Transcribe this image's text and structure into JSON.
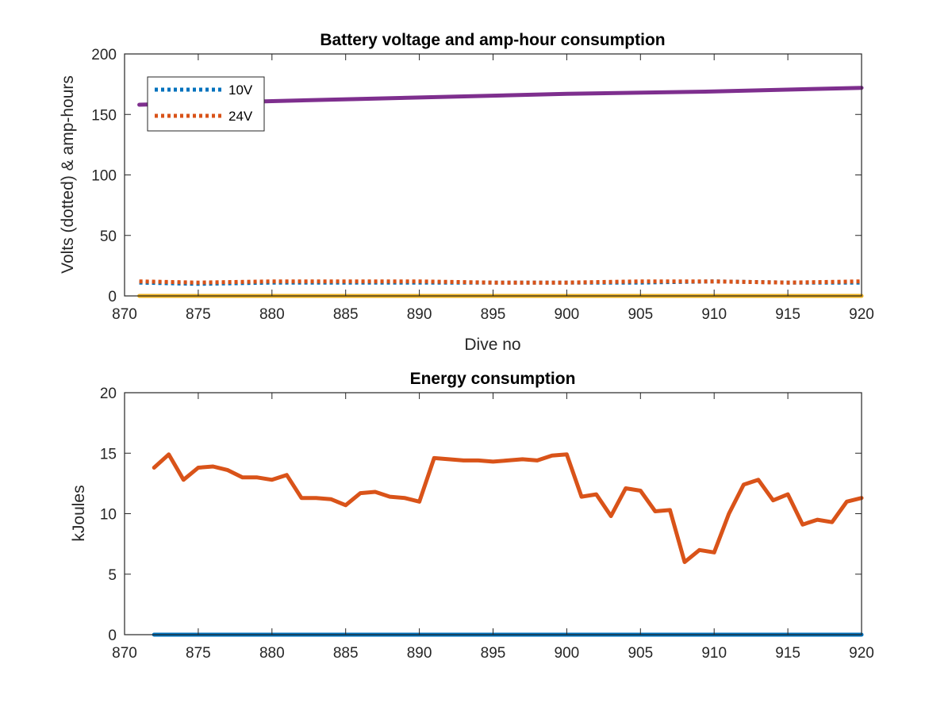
{
  "chart_data": [
    {
      "type": "line",
      "title": "Battery voltage and amp-hour consumption",
      "xlabel": "Dive no",
      "ylabel": "Volts (dotted) & amp-hours",
      "xlim": [
        870,
        920
      ],
      "ylim": [
        0,
        200
      ],
      "xticks": [
        870,
        875,
        880,
        885,
        890,
        895,
        900,
        905,
        910,
        915,
        920
      ],
      "yticks": [
        0,
        50,
        100,
        150,
        200
      ],
      "grid": false,
      "legend_position": "top-left",
      "series": [
        {
          "name": "10V",
          "style": "dotted",
          "color": "#0072BD",
          "x": [
            871,
            875,
            880,
            885,
            890,
            895,
            900,
            905,
            910,
            915,
            920
          ],
          "y": [
            11,
            10,
            11,
            11,
            11,
            11,
            11,
            11,
            12,
            11,
            11
          ]
        },
        {
          "name": "24V",
          "style": "dotted",
          "color": "#D95319",
          "x": [
            871,
            875,
            880,
            885,
            890,
            895,
            900,
            905,
            910,
            915,
            920
          ],
          "y": [
            12,
            11,
            12,
            12,
            12,
            11,
            11,
            12,
            12,
            11,
            12
          ]
        },
        {
          "style": "solid",
          "color": "#EDB120",
          "x": [
            871,
            920
          ],
          "y": [
            0,
            0
          ]
        },
        {
          "style": "solid",
          "color": "#7E2F8E",
          "x": [
            871,
            880,
            890,
            900,
            910,
            920
          ],
          "y": [
            158,
            161,
            164,
            167,
            169,
            172
          ]
        }
      ]
    },
    {
      "type": "line",
      "title": "Energy consumption",
      "xlabel": "",
      "ylabel": "kJoules",
      "xlim": [
        870,
        920
      ],
      "ylim": [
        0,
        20
      ],
      "xticks": [
        870,
        875,
        880,
        885,
        890,
        895,
        900,
        905,
        910,
        915,
        920
      ],
      "yticks": [
        0,
        5,
        10,
        15,
        20
      ],
      "grid": false,
      "series": [
        {
          "style": "solid",
          "color": "#0072BD",
          "x": [
            872,
            920
          ],
          "y": [
            0,
            0
          ]
        },
        {
          "style": "solid",
          "color": "#D95319",
          "x": [
            872,
            873,
            874,
            875,
            876,
            877,
            878,
            879,
            880,
            881,
            882,
            883,
            884,
            885,
            886,
            887,
            888,
            889,
            890,
            891,
            892,
            893,
            894,
            895,
            896,
            897,
            898,
            899,
            900,
            901,
            902,
            903,
            904,
            905,
            906,
            907,
            908,
            909,
            910,
            911,
            912,
            913,
            914,
            915,
            916,
            917,
            918,
            919,
            920
          ],
          "y": [
            13.8,
            14.9,
            12.8,
            13.8,
            13.9,
            13.6,
            13.0,
            13.0,
            12.8,
            13.2,
            11.3,
            11.3,
            11.2,
            10.7,
            11.7,
            11.8,
            11.4,
            11.3,
            11.0,
            14.6,
            14.5,
            14.4,
            14.4,
            14.3,
            14.4,
            14.5,
            14.4,
            14.8,
            14.9,
            11.4,
            11.6,
            9.8,
            12.1,
            11.9,
            10.2,
            10.3,
            6.0,
            7.0,
            6.8,
            10.0,
            12.4,
            12.8,
            11.1,
            11.6,
            9.1,
            9.5,
            9.3,
            11.0,
            11.3
          ]
        }
      ]
    }
  ]
}
